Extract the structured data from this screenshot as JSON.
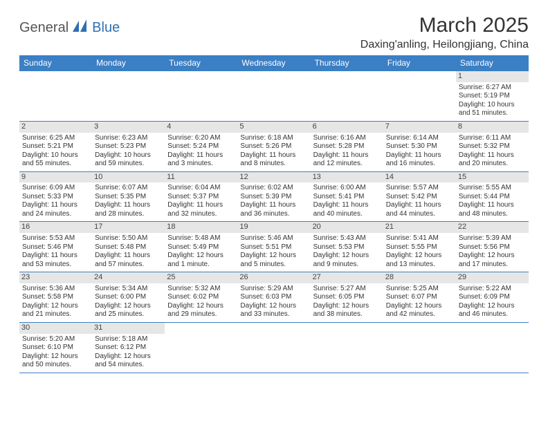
{
  "logo": {
    "text1": "General",
    "text2": "Blue"
  },
  "title": "March 2025",
  "location": "Daxing'anling, Heilongjiang, China",
  "colors": {
    "header_bg": "#3b7fc4",
    "header_text": "#ffffff",
    "border": "#3b7fc4",
    "daynum_bg": "#e6e6e6",
    "text": "#333333",
    "logo_gray": "#555555",
    "logo_blue": "#2f6fb3"
  },
  "day_headers": [
    "Sunday",
    "Monday",
    "Tuesday",
    "Wednesday",
    "Thursday",
    "Friday",
    "Saturday"
  ],
  "weeks": [
    [
      null,
      null,
      null,
      null,
      null,
      null,
      {
        "n": "1",
        "sr": "Sunrise: 6:27 AM",
        "ss": "Sunset: 5:19 PM",
        "dl1": "Daylight: 10 hours",
        "dl2": "and 51 minutes."
      }
    ],
    [
      {
        "n": "2",
        "sr": "Sunrise: 6:25 AM",
        "ss": "Sunset: 5:21 PM",
        "dl1": "Daylight: 10 hours",
        "dl2": "and 55 minutes."
      },
      {
        "n": "3",
        "sr": "Sunrise: 6:23 AM",
        "ss": "Sunset: 5:23 PM",
        "dl1": "Daylight: 10 hours",
        "dl2": "and 59 minutes."
      },
      {
        "n": "4",
        "sr": "Sunrise: 6:20 AM",
        "ss": "Sunset: 5:24 PM",
        "dl1": "Daylight: 11 hours",
        "dl2": "and 3 minutes."
      },
      {
        "n": "5",
        "sr": "Sunrise: 6:18 AM",
        "ss": "Sunset: 5:26 PM",
        "dl1": "Daylight: 11 hours",
        "dl2": "and 8 minutes."
      },
      {
        "n": "6",
        "sr": "Sunrise: 6:16 AM",
        "ss": "Sunset: 5:28 PM",
        "dl1": "Daylight: 11 hours",
        "dl2": "and 12 minutes."
      },
      {
        "n": "7",
        "sr": "Sunrise: 6:14 AM",
        "ss": "Sunset: 5:30 PM",
        "dl1": "Daylight: 11 hours",
        "dl2": "and 16 minutes."
      },
      {
        "n": "8",
        "sr": "Sunrise: 6:11 AM",
        "ss": "Sunset: 5:32 PM",
        "dl1": "Daylight: 11 hours",
        "dl2": "and 20 minutes."
      }
    ],
    [
      {
        "n": "9",
        "sr": "Sunrise: 6:09 AM",
        "ss": "Sunset: 5:33 PM",
        "dl1": "Daylight: 11 hours",
        "dl2": "and 24 minutes."
      },
      {
        "n": "10",
        "sr": "Sunrise: 6:07 AM",
        "ss": "Sunset: 5:35 PM",
        "dl1": "Daylight: 11 hours",
        "dl2": "and 28 minutes."
      },
      {
        "n": "11",
        "sr": "Sunrise: 6:04 AM",
        "ss": "Sunset: 5:37 PM",
        "dl1": "Daylight: 11 hours",
        "dl2": "and 32 minutes."
      },
      {
        "n": "12",
        "sr": "Sunrise: 6:02 AM",
        "ss": "Sunset: 5:39 PM",
        "dl1": "Daylight: 11 hours",
        "dl2": "and 36 minutes."
      },
      {
        "n": "13",
        "sr": "Sunrise: 6:00 AM",
        "ss": "Sunset: 5:41 PM",
        "dl1": "Daylight: 11 hours",
        "dl2": "and 40 minutes."
      },
      {
        "n": "14",
        "sr": "Sunrise: 5:57 AM",
        "ss": "Sunset: 5:42 PM",
        "dl1": "Daylight: 11 hours",
        "dl2": "and 44 minutes."
      },
      {
        "n": "15",
        "sr": "Sunrise: 5:55 AM",
        "ss": "Sunset: 5:44 PM",
        "dl1": "Daylight: 11 hours",
        "dl2": "and 48 minutes."
      }
    ],
    [
      {
        "n": "16",
        "sr": "Sunrise: 5:53 AM",
        "ss": "Sunset: 5:46 PM",
        "dl1": "Daylight: 11 hours",
        "dl2": "and 53 minutes."
      },
      {
        "n": "17",
        "sr": "Sunrise: 5:50 AM",
        "ss": "Sunset: 5:48 PM",
        "dl1": "Daylight: 11 hours",
        "dl2": "and 57 minutes."
      },
      {
        "n": "18",
        "sr": "Sunrise: 5:48 AM",
        "ss": "Sunset: 5:49 PM",
        "dl1": "Daylight: 12 hours",
        "dl2": "and 1 minute."
      },
      {
        "n": "19",
        "sr": "Sunrise: 5:46 AM",
        "ss": "Sunset: 5:51 PM",
        "dl1": "Daylight: 12 hours",
        "dl2": "and 5 minutes."
      },
      {
        "n": "20",
        "sr": "Sunrise: 5:43 AM",
        "ss": "Sunset: 5:53 PM",
        "dl1": "Daylight: 12 hours",
        "dl2": "and 9 minutes."
      },
      {
        "n": "21",
        "sr": "Sunrise: 5:41 AM",
        "ss": "Sunset: 5:55 PM",
        "dl1": "Daylight: 12 hours",
        "dl2": "and 13 minutes."
      },
      {
        "n": "22",
        "sr": "Sunrise: 5:39 AM",
        "ss": "Sunset: 5:56 PM",
        "dl1": "Daylight: 12 hours",
        "dl2": "and 17 minutes."
      }
    ],
    [
      {
        "n": "23",
        "sr": "Sunrise: 5:36 AM",
        "ss": "Sunset: 5:58 PM",
        "dl1": "Daylight: 12 hours",
        "dl2": "and 21 minutes."
      },
      {
        "n": "24",
        "sr": "Sunrise: 5:34 AM",
        "ss": "Sunset: 6:00 PM",
        "dl1": "Daylight: 12 hours",
        "dl2": "and 25 minutes."
      },
      {
        "n": "25",
        "sr": "Sunrise: 5:32 AM",
        "ss": "Sunset: 6:02 PM",
        "dl1": "Daylight: 12 hours",
        "dl2": "and 29 minutes."
      },
      {
        "n": "26",
        "sr": "Sunrise: 5:29 AM",
        "ss": "Sunset: 6:03 PM",
        "dl1": "Daylight: 12 hours",
        "dl2": "and 33 minutes."
      },
      {
        "n": "27",
        "sr": "Sunrise: 5:27 AM",
        "ss": "Sunset: 6:05 PM",
        "dl1": "Daylight: 12 hours",
        "dl2": "and 38 minutes."
      },
      {
        "n": "28",
        "sr": "Sunrise: 5:25 AM",
        "ss": "Sunset: 6:07 PM",
        "dl1": "Daylight: 12 hours",
        "dl2": "and 42 minutes."
      },
      {
        "n": "29",
        "sr": "Sunrise: 5:22 AM",
        "ss": "Sunset: 6:09 PM",
        "dl1": "Daylight: 12 hours",
        "dl2": "and 46 minutes."
      }
    ],
    [
      {
        "n": "30",
        "sr": "Sunrise: 5:20 AM",
        "ss": "Sunset: 6:10 PM",
        "dl1": "Daylight: 12 hours",
        "dl2": "and 50 minutes."
      },
      {
        "n": "31",
        "sr": "Sunrise: 5:18 AM",
        "ss": "Sunset: 6:12 PM",
        "dl1": "Daylight: 12 hours",
        "dl2": "and 54 minutes."
      },
      null,
      null,
      null,
      null,
      null
    ]
  ]
}
